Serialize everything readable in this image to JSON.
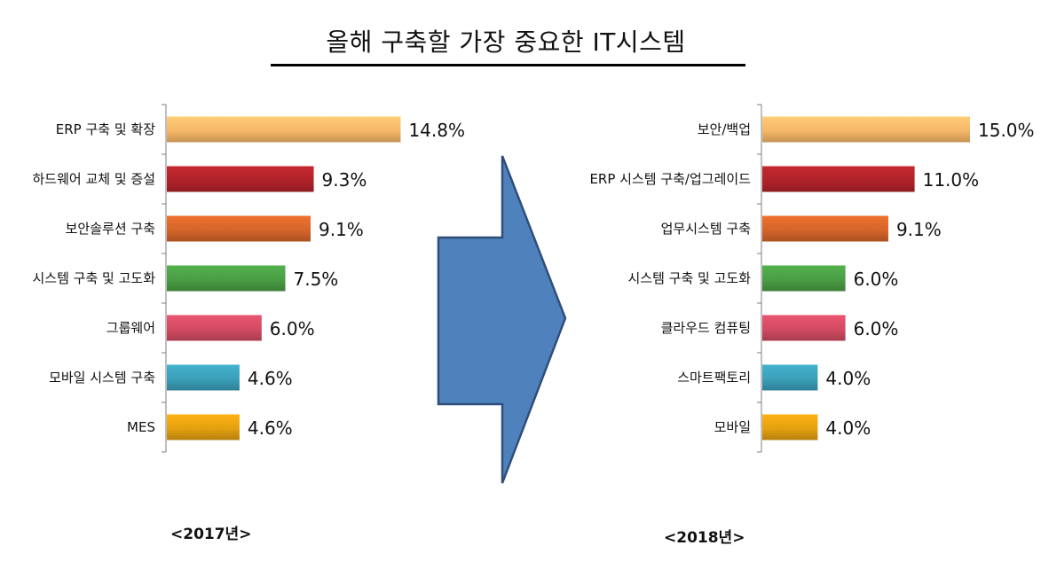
{
  "title": "올해 구축할 가장 중요한 IT시스템",
  "chart_data": [
    {
      "type": "bar",
      "orientation": "horizontal",
      "caption": "<2017년>",
      "categories": [
        "ERP 구축 및 확장",
        "하드웨어 교체 및 증설",
        "보안솔루션 구축",
        "시스템 구축 및 고도화",
        "그룹웨어",
        "모바일 시스템 구축",
        "MES"
      ],
      "values": [
        14.8,
        9.3,
        9.1,
        7.5,
        6.0,
        4.6,
        4.6
      ],
      "value_labels": [
        "14.8%",
        "9.3%",
        "9.1%",
        "7.5%",
        "6.0%",
        "4.6%",
        "4.6%"
      ],
      "colors": [
        "#f6b769",
        "#b1232a",
        "#d5652a",
        "#4a9e44",
        "#d24b63",
        "#3b9fb9",
        "#e3a010"
      ],
      "xlim": [
        0,
        15
      ]
    },
    {
      "type": "bar",
      "orientation": "horizontal",
      "caption": "<2018년>",
      "categories": [
        "보안/백업",
        "ERP 시스템 구축/업그레이드",
        "업무시스템 구축",
        "시스템 구축 및 고도화",
        "클라우드 컴퓨팅",
        "스마트팩토리",
        "모바일"
      ],
      "values": [
        15.0,
        11.0,
        9.1,
        6.0,
        6.0,
        4.0,
        4.0
      ],
      "value_labels": [
        "15.0%",
        "11.0%",
        "9.1%",
        "6.0%",
        "6.0%",
        "4.0%",
        "4.0%"
      ],
      "colors": [
        "#f6b769",
        "#b1232a",
        "#d5652a",
        "#4a9e44",
        "#d24b63",
        "#3b9fb9",
        "#e3a010"
      ],
      "xlim": [
        0,
        15
      ]
    }
  ],
  "arrow": {
    "color": "#4f81bd",
    "stroke": "#2f4f7a"
  }
}
